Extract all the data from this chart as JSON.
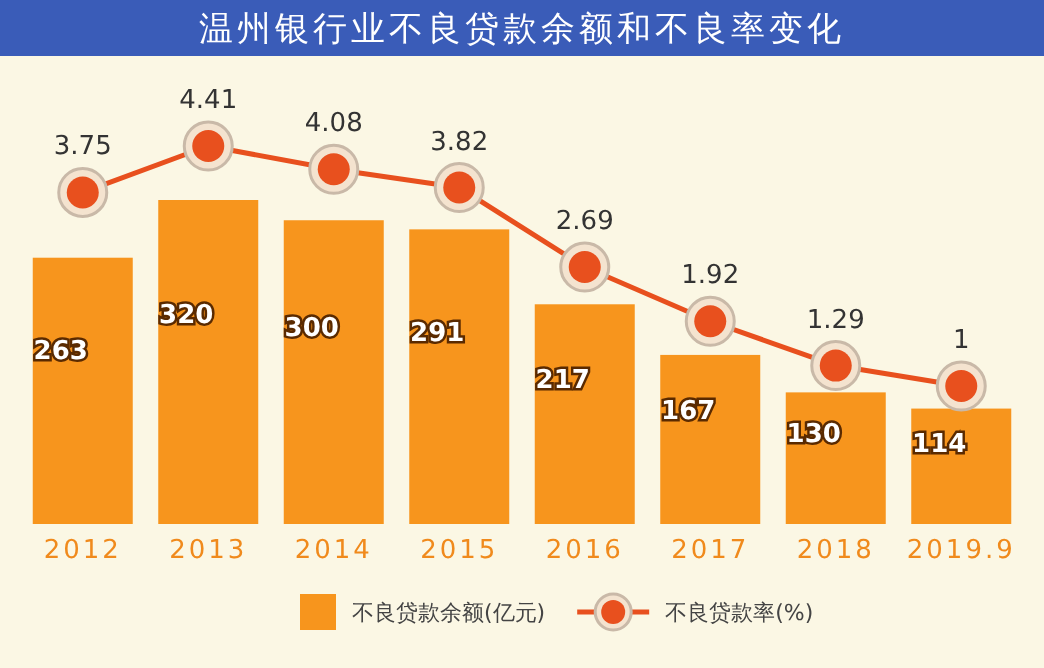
{
  "chart_data": {
    "type": "bar",
    "title": "温州银行业不良贷款余额和不良率变化",
    "categories": [
      "2012",
      "2013",
      "2014",
      "2015",
      "2016",
      "2017",
      "2018",
      "2019.9"
    ],
    "series": [
      {
        "name": "不良贷款余额(亿元)",
        "color": "#f7951d",
        "values": [
          263,
          320,
          300,
          291,
          217,
          167,
          130,
          114
        ]
      },
      {
        "name": "不良贷款率(%)",
        "type": "line",
        "axis": "y2",
        "color": "#e8501e",
        "marker": "circle",
        "values": [
          3.75,
          4.41,
          4.08,
          3.82,
          2.69,
          1.92,
          1.29,
          1
        ]
      }
    ],
    "data_labels": true,
    "legend": "bottom"
  }
}
